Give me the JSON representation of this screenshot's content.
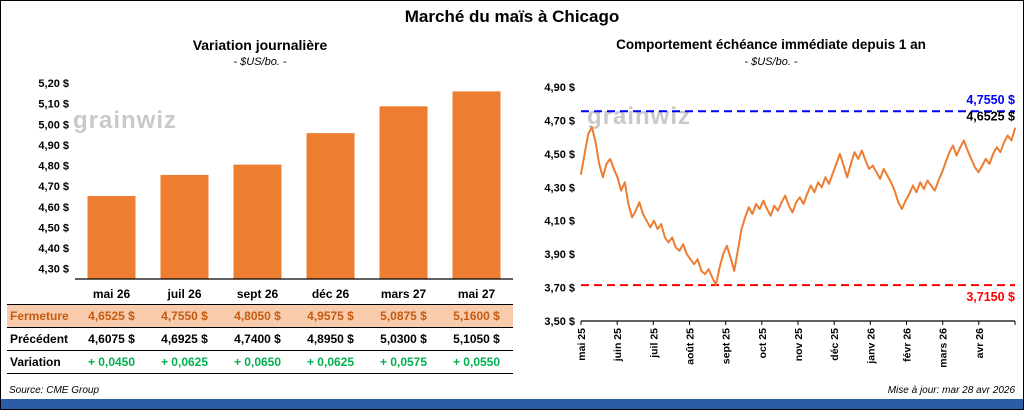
{
  "page": {
    "title": "Marché du maïs à Chicago",
    "watermark": "grainwiz",
    "source": "Source: CME Group",
    "updated": "Mise à jour: mar 28 avr 2026"
  },
  "colors": {
    "orange": "#ED7D31",
    "peach": "#F8CBAD",
    "brown": "#C55A11",
    "green": "#00B050",
    "blue": "#0000FF",
    "red": "#FF0000",
    "footer_blue": "#2A5CA8"
  },
  "chart_data": [
    {
      "type": "bar",
      "title": "Variation journalière",
      "subtitle": "- $US/bo. -",
      "categories": [
        "mai 26",
        "juil 26",
        "sept 26",
        "déc 26",
        "mars 27",
        "mai 27"
      ],
      "values": [
        4.6525,
        4.755,
        4.805,
        4.9575,
        5.0875,
        5.16
      ],
      "ylim": [
        4.25,
        5.22
      ],
      "yticks": [
        5.2,
        5.1,
        5.0,
        4.9,
        4.8,
        4.7,
        4.6,
        4.5,
        4.4,
        4.3
      ],
      "ytick_labels": [
        "5,20 $",
        "5,10 $",
        "5,00 $",
        "4,90 $",
        "4,80 $",
        "4,70 $",
        "4,60 $",
        "4,50 $",
        "4,40 $",
        "4,30 $"
      ],
      "bar_color": "#ED7D31",
      "grid": false,
      "legend": false
    },
    {
      "type": "line",
      "title": "Comportement échéance immédiate depuis 1 an",
      "subtitle": "- $US/bo. -",
      "x_labels": [
        "mai 25",
        "juin 25",
        "juil 25",
        "août 25",
        "sept 25",
        "oct 25",
        "nov 25",
        "déc 25",
        "janv 26",
        "févr 26",
        "mars 26",
        "avr 26"
      ],
      "values": [
        4.38,
        4.5,
        4.62,
        4.66,
        4.57,
        4.44,
        4.36,
        4.44,
        4.47,
        4.41,
        4.36,
        4.28,
        4.33,
        4.2,
        4.12,
        4.16,
        4.21,
        4.14,
        4.1,
        4.06,
        4.1,
        4.05,
        4.08,
        4.0,
        3.97,
        4.0,
        3.94,
        3.92,
        3.96,
        3.9,
        3.87,
        3.84,
        3.87,
        3.8,
        3.78,
        3.81,
        3.76,
        3.715,
        3.82,
        3.9,
        3.95,
        3.88,
        3.8,
        3.92,
        4.05,
        4.12,
        4.18,
        4.14,
        4.2,
        4.17,
        4.22,
        4.17,
        4.13,
        4.19,
        4.16,
        4.21,
        4.25,
        4.19,
        4.15,
        4.21,
        4.24,
        4.2,
        4.26,
        4.31,
        4.27,
        4.33,
        4.3,
        4.36,
        4.32,
        4.38,
        4.44,
        4.5,
        4.43,
        4.36,
        4.44,
        4.51,
        4.47,
        4.52,
        4.46,
        4.41,
        4.43,
        4.39,
        4.35,
        4.41,
        4.37,
        4.33,
        4.28,
        4.21,
        4.17,
        4.22,
        4.26,
        4.31,
        4.27,
        4.33,
        4.29,
        4.34,
        4.31,
        4.28,
        4.34,
        4.39,
        4.45,
        4.51,
        4.55,
        4.49,
        4.54,
        4.58,
        4.52,
        4.47,
        4.42,
        4.39,
        4.43,
        4.47,
        4.44,
        4.5,
        4.54,
        4.51,
        4.57,
        4.61,
        4.58,
        4.6525
      ],
      "ylim": [
        3.5,
        4.9
      ],
      "yticks": [
        4.9,
        4.7,
        4.5,
        4.3,
        4.1,
        3.9,
        3.7,
        3.5
      ],
      "ytick_labels": [
        "4,90 $",
        "4,70 $",
        "4,50 $",
        "4,30 $",
        "4,10 $",
        "3,90 $",
        "3,70 $",
        "3,50 $"
      ],
      "line_color": "#ED7D31",
      "grid": false,
      "legend": false,
      "reference_lines": [
        {
          "key": "high",
          "value": 4.755,
          "label": "4,7550 $",
          "color": "#0000FF",
          "style": "dashed",
          "position": "above"
        },
        {
          "key": "low",
          "value": 3.715,
          "label": "3,7150 $",
          "color": "#FF0000",
          "style": "dashed",
          "position": "below"
        }
      ],
      "end_label": {
        "value": 4.6525,
        "label": "4,6525 $",
        "color": "#000000"
      }
    }
  ],
  "table": {
    "rows": [
      {
        "key": "fermeture",
        "label": "Fermeture",
        "bg": "#F8CBAD",
        "label_color": "#C55A11",
        "value_color": "#C55A11",
        "values": [
          "4,6525 $",
          "4,7550 $",
          "4,8050 $",
          "4,9575 $",
          "5,0875 $",
          "5,1600 $"
        ]
      },
      {
        "key": "precedent",
        "label": "Précédent",
        "bg": "#FFFFFF",
        "label_color": "#000000",
        "value_color": "#000000",
        "values": [
          "4,6075 $",
          "4,6925 $",
          "4,7400 $",
          "4,8950 $",
          "5,0300 $",
          "5,1050 $"
        ]
      },
      {
        "key": "variation",
        "label": "Variation",
        "bg": "#FFFFFF",
        "label_color": "#000000",
        "value_color": "#00B050",
        "values": [
          "+ 0,0450",
          "+ 0,0625",
          "+ 0,0650",
          "+ 0,0625",
          "+ 0,0575",
          "+ 0,0550"
        ]
      }
    ]
  }
}
